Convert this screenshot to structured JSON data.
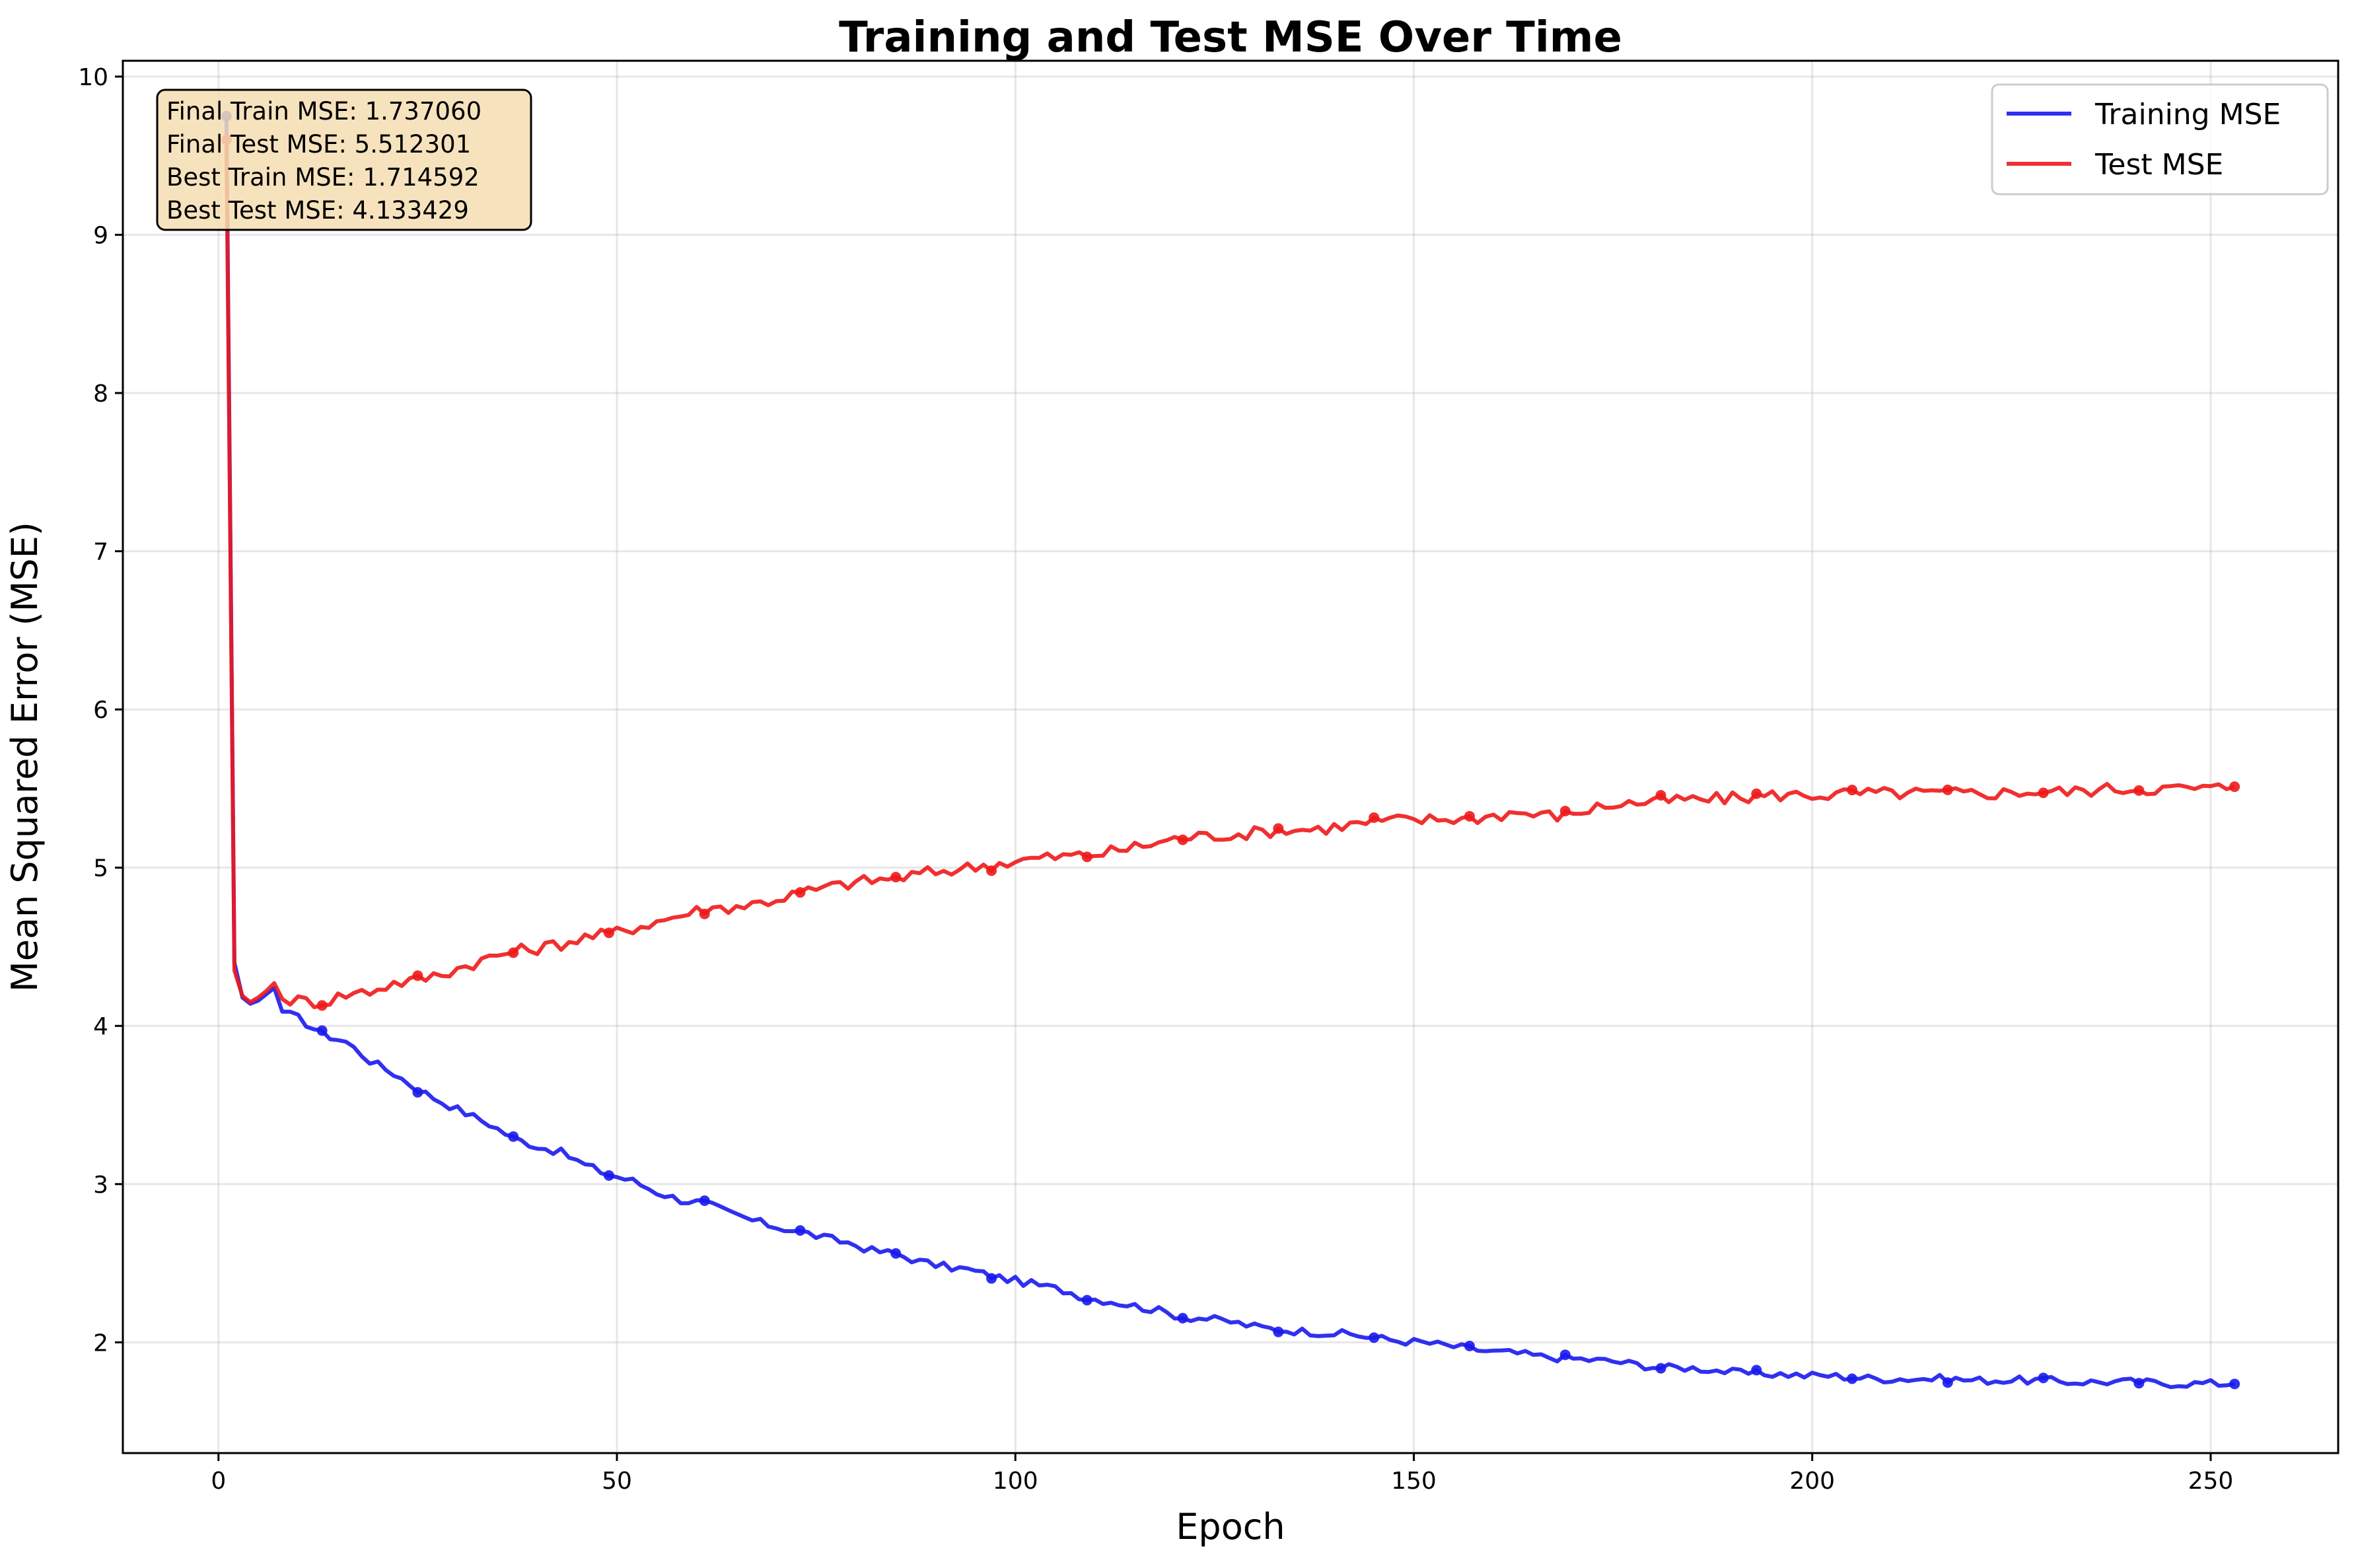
{
  "chart_data": {
    "type": "line",
    "title": "Training and Test MSE Over Time",
    "xlabel": "Epoch",
    "ylabel": "Mean Squared Error (MSE)",
    "xlim": [
      -12,
      266
    ],
    "ylim": [
      1.3,
      10.1
    ],
    "xticks": [
      0,
      50,
      100,
      150,
      200,
      250
    ],
    "yticks": [
      2,
      3,
      4,
      5,
      6,
      7,
      8,
      9,
      10
    ],
    "grid": true,
    "legend_position": "top-right",
    "stats_position": "top-left",
    "stats": [
      "Final Train MSE: 1.737060",
      "Final Test MSE: 5.512301",
      "Best Train MSE: 1.714592",
      "Best Test MSE: 4.133429"
    ],
    "series": [
      {
        "name": "Training MSE",
        "color": "#1a1aee",
        "marker_every": 12,
        "anchors": [
          [
            1,
            9.75
          ],
          [
            2,
            4.4
          ],
          [
            3,
            4.18
          ],
          [
            4,
            4.14
          ],
          [
            5,
            4.16
          ],
          [
            6,
            4.2
          ],
          [
            7,
            4.24
          ],
          [
            8,
            4.09
          ],
          [
            10,
            4.05
          ],
          [
            13,
            3.95
          ],
          [
            16,
            3.9
          ],
          [
            19,
            3.78
          ],
          [
            22,
            3.7
          ],
          [
            25,
            3.6
          ],
          [
            28,
            3.52
          ],
          [
            31,
            3.45
          ],
          [
            34,
            3.38
          ],
          [
            37,
            3.29
          ],
          [
            40,
            3.24
          ],
          [
            43,
            3.2
          ],
          [
            46,
            3.12
          ],
          [
            49,
            3.06
          ],
          [
            52,
            3.02
          ],
          [
            55,
            2.95
          ],
          [
            58,
            2.9
          ],
          [
            61,
            2.88
          ],
          [
            64,
            2.82
          ],
          [
            67,
            2.77
          ],
          [
            70,
            2.73
          ],
          [
            73,
            2.7
          ],
          [
            76,
            2.66
          ],
          [
            79,
            2.63
          ],
          [
            82,
            2.58
          ],
          [
            85,
            2.56
          ],
          [
            88,
            2.51
          ],
          [
            91,
            2.48
          ],
          [
            94,
            2.46
          ],
          [
            97,
            2.42
          ],
          [
            100,
            2.39
          ],
          [
            103,
            2.36
          ],
          [
            106,
            2.33
          ],
          [
            109,
            2.28
          ],
          [
            112,
            2.26
          ],
          [
            115,
            2.23
          ],
          [
            118,
            2.2
          ],
          [
            121,
            2.16
          ],
          [
            124,
            2.15
          ],
          [
            127,
            2.13
          ],
          [
            130,
            2.1
          ],
          [
            133,
            2.08
          ],
          [
            136,
            2.07
          ],
          [
            139,
            2.06
          ],
          [
            142,
            2.05
          ],
          [
            145,
            2.03
          ],
          [
            148,
            2.01
          ],
          [
            151,
            2.0
          ],
          [
            154,
            1.98
          ],
          [
            157,
            1.96
          ],
          [
            160,
            1.94
          ],
          [
            163,
            1.93
          ],
          [
            166,
            1.91
          ],
          [
            169,
            1.9
          ],
          [
            172,
            1.89
          ],
          [
            175,
            1.88
          ],
          [
            178,
            1.86
          ],
          [
            181,
            1.84
          ],
          [
            184,
            1.84
          ],
          [
            187,
            1.83
          ],
          [
            190,
            1.81
          ],
          [
            193,
            1.8
          ],
          [
            196,
            1.8
          ],
          [
            199,
            1.79
          ],
          [
            202,
            1.79
          ],
          [
            205,
            1.78
          ],
          [
            208,
            1.77
          ],
          [
            211,
            1.77
          ],
          [
            214,
            1.77
          ],
          [
            217,
            1.77
          ],
          [
            220,
            1.76
          ],
          [
            223,
            1.76
          ],
          [
            226,
            1.76
          ],
          [
            229,
            1.76
          ],
          [
            232,
            1.75
          ],
          [
            235,
            1.75
          ],
          [
            238,
            1.75
          ],
          [
            241,
            1.75
          ],
          [
            244,
            1.74
          ],
          [
            247,
            1.74
          ],
          [
            250,
            1.74
          ],
          [
            253,
            1.737
          ]
        ]
      },
      {
        "name": "Test MSE",
        "color": "#ee1a1a",
        "marker_every": 12,
        "anchors": [
          [
            1,
            9.6
          ],
          [
            2,
            4.35
          ],
          [
            3,
            4.19
          ],
          [
            4,
            4.15
          ],
          [
            5,
            4.18
          ],
          [
            6,
            4.22
          ],
          [
            7,
            4.27
          ],
          [
            8,
            4.17
          ],
          [
            10,
            4.16
          ],
          [
            13,
            4.15
          ],
          [
            16,
            4.2
          ],
          [
            19,
            4.22
          ],
          [
            22,
            4.27
          ],
          [
            25,
            4.29
          ],
          [
            28,
            4.33
          ],
          [
            31,
            4.38
          ],
          [
            34,
            4.43
          ],
          [
            37,
            4.47
          ],
          [
            40,
            4.49
          ],
          [
            43,
            4.52
          ],
          [
            46,
            4.56
          ],
          [
            49,
            4.58
          ],
          [
            52,
            4.62
          ],
          [
            55,
            4.66
          ],
          [
            58,
            4.7
          ],
          [
            61,
            4.74
          ],
          [
            64,
            4.75
          ],
          [
            67,
            4.77
          ],
          [
            70,
            4.8
          ],
          [
            73,
            4.84
          ],
          [
            76,
            4.87
          ],
          [
            79,
            4.9
          ],
          [
            82,
            4.92
          ],
          [
            85,
            4.93
          ],
          [
            88,
            4.96
          ],
          [
            91,
            4.98
          ],
          [
            94,
            5.0
          ],
          [
            97,
            5.02
          ],
          [
            100,
            5.04
          ],
          [
            103,
            5.06
          ],
          [
            106,
            5.07
          ],
          [
            109,
            5.08
          ],
          [
            112,
            5.1
          ],
          [
            115,
            5.13
          ],
          [
            118,
            5.16
          ],
          [
            121,
            5.19
          ],
          [
            124,
            5.2
          ],
          [
            127,
            5.21
          ],
          [
            130,
            5.22
          ],
          [
            133,
            5.24
          ],
          [
            136,
            5.24
          ],
          [
            139,
            5.25
          ],
          [
            142,
            5.27
          ],
          [
            145,
            5.29
          ],
          [
            148,
            5.3
          ],
          [
            151,
            5.3
          ],
          [
            154,
            5.31
          ],
          [
            157,
            5.31
          ],
          [
            160,
            5.33
          ],
          [
            163,
            5.35
          ],
          [
            166,
            5.33
          ],
          [
            169,
            5.33
          ],
          [
            172,
            5.37
          ],
          [
            175,
            5.4
          ],
          [
            178,
            5.41
          ],
          [
            181,
            5.42
          ],
          [
            184,
            5.43
          ],
          [
            187,
            5.43
          ],
          [
            190,
            5.44
          ],
          [
            193,
            5.45
          ],
          [
            196,
            5.46
          ],
          [
            199,
            5.46
          ],
          [
            202,
            5.46
          ],
          [
            205,
            5.47
          ],
          [
            208,
            5.47
          ],
          [
            211,
            5.47
          ],
          [
            214,
            5.47
          ],
          [
            217,
            5.47
          ],
          [
            220,
            5.47
          ],
          [
            223,
            5.47
          ],
          [
            226,
            5.48
          ],
          [
            229,
            5.48
          ],
          [
            232,
            5.48
          ],
          [
            235,
            5.49
          ],
          [
            238,
            5.5
          ],
          [
            241,
            5.5
          ],
          [
            244,
            5.5
          ],
          [
            247,
            5.5
          ],
          [
            250,
            5.5
          ],
          [
            253,
            5.512
          ]
        ]
      }
    ]
  }
}
